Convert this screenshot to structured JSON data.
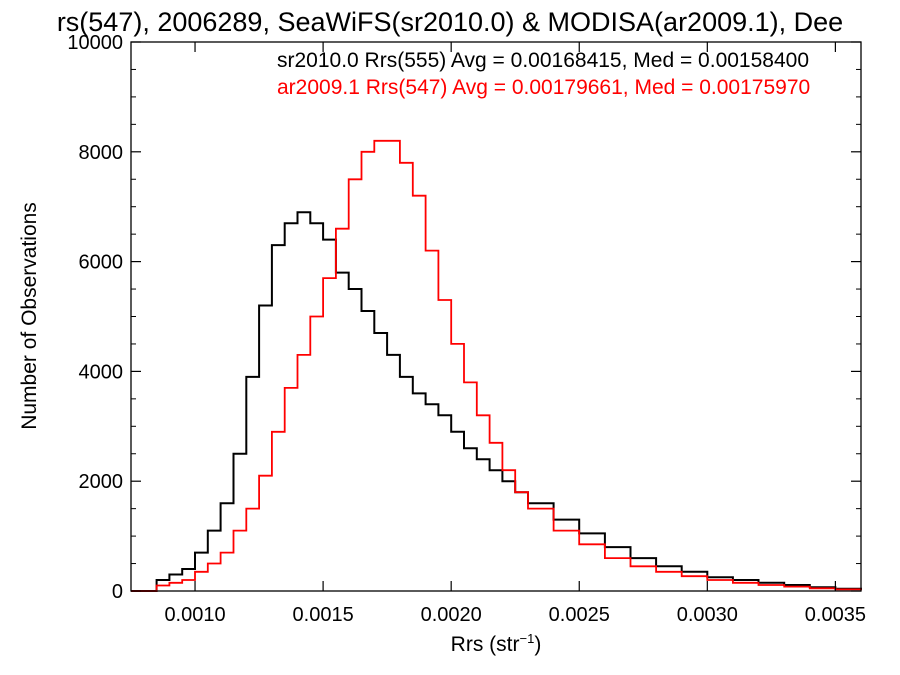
{
  "chart_data": {
    "type": "line",
    "step": true,
    "title": "rs(547), 2006289, SeaWiFS(sr2010.0) & MODISA(ar2009.1), Dee",
    "xlabel_main": "Rrs (str",
    "xlabel_sup": "−1",
    "xlabel_end": ")",
    "ylabel": "Number of Observations",
    "xlim": [
      0.00075,
      0.0036
    ],
    "ylim": [
      0,
      10000
    ],
    "x_ticks": [
      0.001,
      0.0015,
      0.002,
      0.0025,
      0.003,
      0.0035
    ],
    "x_tick_labels": [
      "0.0010",
      "0.0015",
      "0.0020",
      "0.0025",
      "0.0030",
      "0.0035"
    ],
    "y_ticks": [
      0,
      2000,
      4000,
      6000,
      8000,
      10000
    ],
    "y_tick_labels": [
      "0",
      "2000",
      "4000",
      "6000",
      "8000",
      "10000"
    ],
    "grid": false,
    "legend_position": "top-right",
    "series": [
      {
        "name": "sr2010.0 Rrs(555) Avg = 0.00168415, Med = 0.00158400",
        "color": "#000000",
        "x": [
          0.00075,
          0.0008,
          0.00085,
          0.0009,
          0.00095,
          0.001,
          0.00105,
          0.0011,
          0.00115,
          0.0012,
          0.00125,
          0.0013,
          0.00135,
          0.0014,
          0.00145,
          0.0015,
          0.00155,
          0.0016,
          0.00165,
          0.0017,
          0.00175,
          0.0018,
          0.00185,
          0.0019,
          0.00195,
          0.002,
          0.00205,
          0.0021,
          0.00215,
          0.0022,
          0.00225,
          0.0023,
          0.0024,
          0.0025,
          0.0026,
          0.0027,
          0.0028,
          0.0029,
          0.003,
          0.0031,
          0.0032,
          0.0033,
          0.0034,
          0.0035,
          0.0036
        ],
        "y": [
          0,
          0,
          200,
          300,
          400,
          700,
          1100,
          1600,
          2500,
          3900,
          5200,
          6300,
          6700,
          6900,
          6700,
          6400,
          5800,
          5500,
          5100,
          4700,
          4300,
          3900,
          3600,
          3400,
          3200,
          2900,
          2600,
          2400,
          2200,
          2000,
          1800,
          1600,
          1300,
          1050,
          800,
          600,
          450,
          350,
          250,
          200,
          150,
          110,
          70,
          40,
          20
        ]
      },
      {
        "name": "ar2009.1 Rrs(547) Avg = 0.00179661, Med = 0.00175970",
        "color": "#ff0000",
        "x": [
          0.00075,
          0.0008,
          0.00085,
          0.0009,
          0.00095,
          0.001,
          0.00105,
          0.0011,
          0.00115,
          0.0012,
          0.00125,
          0.0013,
          0.00135,
          0.0014,
          0.00145,
          0.0015,
          0.00155,
          0.0016,
          0.00165,
          0.0017,
          0.00175,
          0.0018,
          0.00185,
          0.0019,
          0.00195,
          0.002,
          0.00205,
          0.0021,
          0.00215,
          0.0022,
          0.00225,
          0.0023,
          0.0024,
          0.0025,
          0.0026,
          0.0027,
          0.0028,
          0.0029,
          0.003,
          0.0031,
          0.0032,
          0.0033,
          0.0034,
          0.0035,
          0.0036
        ],
        "y": [
          0,
          0,
          100,
          150,
          200,
          350,
          500,
          700,
          1100,
          1500,
          2100,
          2900,
          3700,
          4300,
          5000,
          5700,
          6600,
          7500,
          8000,
          8200,
          8200,
          7800,
          7200,
          6200,
          5300,
          4500,
          3800,
          3200,
          2700,
          2200,
          1800,
          1500,
          1100,
          850,
          600,
          450,
          350,
          270,
          200,
          150,
          110,
          80,
          50,
          30,
          15
        ]
      }
    ]
  }
}
